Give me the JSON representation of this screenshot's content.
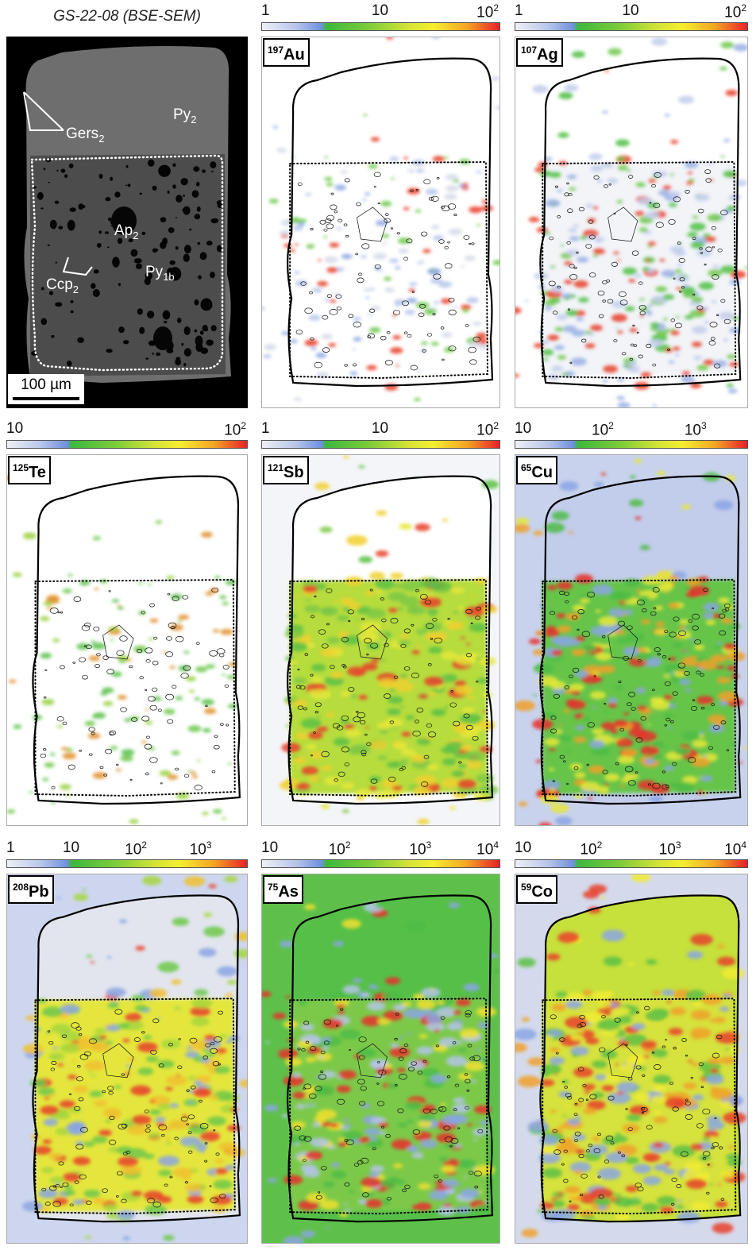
{
  "title": "GS-22-08 (BSE-SEM)",
  "bse_labels": [
    {
      "text": "Gers",
      "sub": "2"
    },
    {
      "text": "Py",
      "sub": "2"
    },
    {
      "text": "Ap",
      "sub": "2"
    },
    {
      "text": "Ccp",
      "sub": "2"
    },
    {
      "text": "Py",
      "sub": "1b"
    }
  ],
  "scale_bar": "100 µm",
  "maps": [
    {
      "mass": "197",
      "element": "Au",
      "ticks": [
        {
          "text": "1"
        },
        {
          "text": "10"
        },
        {
          "text": "10",
          "sup": "2"
        }
      ]
    },
    {
      "mass": "107",
      "element": "Ag",
      "ticks": [
        {
          "text": "1"
        },
        {
          "text": "10"
        },
        {
          "text": "10",
          "sup": "2"
        }
      ]
    },
    {
      "mass": "125",
      "element": "Te",
      "ticks": [
        {
          "text": "10"
        },
        {
          "text": "10",
          "sup": "2"
        }
      ]
    },
    {
      "mass": "121",
      "element": "Sb",
      "ticks": [
        {
          "text": "1"
        },
        {
          "text": "10"
        },
        {
          "text": "10",
          "sup": "2"
        }
      ]
    },
    {
      "mass": "65",
      "element": "Cu",
      "ticks": [
        {
          "text": "10"
        },
        {
          "text": "10",
          "sup": "2"
        },
        {
          "text": "10",
          "sup": "3"
        }
      ]
    },
    {
      "mass": "208",
      "element": "Pb",
      "ticks": [
        {
          "text": "1"
        },
        {
          "text": "10"
        },
        {
          "text": "10",
          "sup": "2"
        },
        {
          "text": "10",
          "sup": "3"
        }
      ]
    },
    {
      "mass": "75",
      "element": "As",
      "ticks": [
        {
          "text": "10"
        },
        {
          "text": "10",
          "sup": "2"
        },
        {
          "text": "10",
          "sup": "3"
        },
        {
          "text": "10",
          "sup": "4"
        }
      ]
    },
    {
      "mass": "59",
      "element": "Co",
      "ticks": [
        {
          "text": "10"
        },
        {
          "text": "10",
          "sup": "2"
        },
        {
          "text": "10",
          "sup": "3"
        },
        {
          "text": "10",
          "sup": "4"
        }
      ]
    }
  ]
}
